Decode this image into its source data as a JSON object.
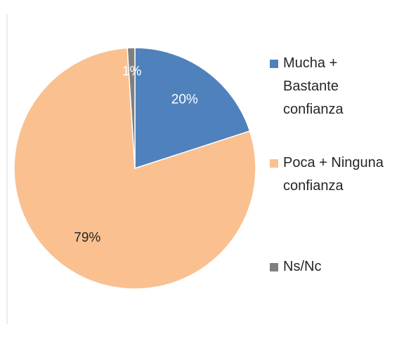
{
  "chart_data": {
    "type": "pie",
    "categories": [
      "Mucha + Bastante confianza",
      "Poca + Ninguna confianza",
      "Ns/Nc"
    ],
    "values": [
      20,
      79,
      1
    ],
    "value_labels": [
      "20%",
      "79%",
      "1%"
    ],
    "colors": [
      "#4f81bd",
      "#fac090",
      "#7f7f7f"
    ],
    "legend": "right"
  }
}
